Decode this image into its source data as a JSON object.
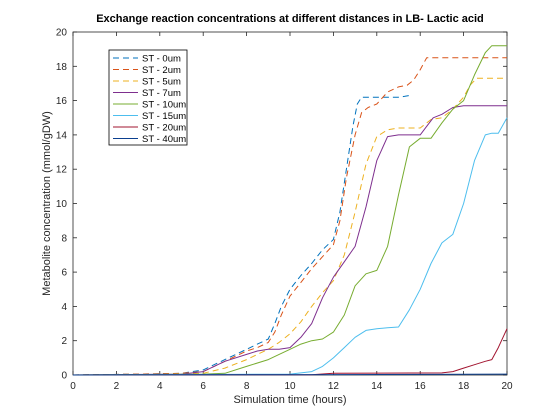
{
  "chart_data": {
    "type": "line",
    "title": "Exchange reaction concentrations at different distances in LB- Lactic acid",
    "xlabel": "Simulation time (hours)",
    "ylabel": "Metabolite concentration (mmol/gDW)",
    "xlim": [
      0,
      20
    ],
    "ylim": [
      0,
      20
    ],
    "x_ticks": [
      0,
      2,
      4,
      6,
      8,
      10,
      12,
      14,
      16,
      18,
      20
    ],
    "y_ticks": [
      0,
      2,
      4,
      6,
      8,
      10,
      12,
      14,
      16,
      18,
      20
    ],
    "grid": false,
    "legend_position": "top-left",
    "series": [
      {
        "name": "ST - 0um",
        "color": "#0072BD",
        "dash": "dashed",
        "x": [
          0,
          3,
          5,
          6,
          6.5,
          7,
          7.5,
          8,
          8.5,
          9,
          9.3,
          9.6,
          10,
          10.5,
          11,
          11.5,
          12,
          12.3,
          12.6,
          12.9,
          13.1,
          13.3,
          15,
          15.3,
          15.5
        ],
        "y": [
          0,
          0.05,
          0.1,
          0.3,
          0.6,
          0.9,
          1.2,
          1.5,
          1.8,
          2.1,
          3.0,
          4.0,
          5.0,
          5.8,
          6.5,
          7.3,
          7.9,
          9.5,
          12.0,
          14.5,
          15.8,
          16.2,
          16.2,
          16.25,
          16.3
        ]
      },
      {
        "name": "ST - 2um",
        "color": "#D95319",
        "dash": "dashed",
        "x": [
          0,
          3,
          5,
          6,
          6.5,
          7,
          7.5,
          8,
          8.5,
          9,
          9.3,
          9.6,
          10,
          10.5,
          11,
          11.5,
          12,
          12.3,
          12.6,
          13,
          13.3,
          13.6,
          14,
          14.5,
          15,
          15.4,
          15.7,
          16,
          16.3,
          20
        ],
        "y": [
          0,
          0.05,
          0.1,
          0.2,
          0.5,
          0.8,
          1.1,
          1.4,
          1.6,
          1.9,
          2.5,
          3.5,
          4.6,
          5.4,
          6.2,
          6.9,
          7.6,
          9.0,
          11.5,
          14.0,
          15.3,
          15.6,
          15.8,
          16.5,
          16.8,
          16.9,
          17.2,
          17.8,
          18.5,
          18.5
        ]
      },
      {
        "name": "ST - 5um",
        "color": "#EDB120",
        "dash": "dashed",
        "x": [
          0,
          4,
          6,
          7,
          8,
          8.5,
          9,
          9.5,
          10,
          10.5,
          11,
          11.5,
          12,
          12.5,
          13,
          13.5,
          14,
          14.5,
          15,
          16,
          16.5,
          17,
          17.5,
          18,
          18.3,
          18.6,
          20
        ],
        "y": [
          0,
          0.05,
          0.1,
          0.4,
          0.9,
          1.2,
          1.5,
          1.9,
          2.4,
          3.1,
          4.0,
          4.8,
          5.5,
          7.0,
          9.5,
          12.3,
          13.9,
          14.3,
          14.4,
          14.4,
          14.9,
          15.0,
          15.5,
          16.2,
          16.9,
          17.3,
          17.3
        ]
      },
      {
        "name": "ST - 7um",
        "color": "#7E2F8E",
        "dash": "solid",
        "x": [
          0,
          5,
          6,
          7,
          8,
          8.5,
          9,
          9.5,
          10,
          10.5,
          11,
          11.5,
          12,
          12.5,
          13,
          13.5,
          14,
          14.5,
          15,
          15.5,
          16,
          16.3,
          16.6,
          17,
          17.5,
          18,
          18.5,
          20
        ],
        "y": [
          0,
          0.05,
          0.2,
          0.8,
          1.2,
          1.4,
          1.5,
          1.5,
          1.6,
          2.2,
          3.0,
          4.5,
          5.7,
          6.6,
          7.5,
          9.8,
          12.5,
          13.9,
          14.0,
          14.0,
          14.0,
          14.5,
          15.0,
          15.2,
          15.6,
          15.7,
          15.7,
          15.7
        ]
      },
      {
        "name": "ST - 10um",
        "color": "#77AC30",
        "dash": "solid",
        "x": [
          0,
          6,
          7,
          8,
          9,
          9.5,
          10,
          10.5,
          11,
          11.5,
          12,
          12.5,
          13,
          13.5,
          14,
          14.5,
          15,
          15.5,
          16,
          16.5,
          17,
          17.5,
          18,
          18.5,
          19,
          19.3,
          20
        ],
        "y": [
          0,
          0.05,
          0.1,
          0.5,
          0.9,
          1.2,
          1.5,
          1.8,
          2.0,
          2.1,
          2.5,
          3.5,
          5.2,
          5.9,
          6.1,
          7.5,
          10.5,
          13.3,
          13.8,
          13.8,
          14.7,
          15.5,
          16.0,
          17.5,
          18.8,
          19.2,
          19.2
        ]
      },
      {
        "name": "ST - 15um",
        "color": "#4DBEEE",
        "dash": "solid",
        "x": [
          0,
          10,
          11,
          11.5,
          12,
          12.5,
          13,
          13.5,
          14,
          14.5,
          15,
          15.5,
          16,
          16.5,
          17,
          17.5,
          18,
          18.5,
          19,
          19.3,
          19.6,
          20
        ],
        "y": [
          0,
          0.05,
          0.2,
          0.5,
          1.0,
          1.6,
          2.2,
          2.6,
          2.7,
          2.75,
          2.8,
          3.8,
          5.0,
          6.5,
          7.7,
          8.2,
          10.0,
          12.5,
          14.0,
          14.1,
          14.1,
          15.0
        ]
      },
      {
        "name": "ST - 20um",
        "color": "#A2142F",
        "dash": "solid",
        "x": [
          0,
          11,
          12,
          17,
          17.5,
          18,
          18.5,
          19,
          19.3,
          19.6,
          20
        ],
        "y": [
          0,
          0.02,
          0.1,
          0.12,
          0.2,
          0.4,
          0.6,
          0.8,
          0.9,
          1.6,
          2.7
        ]
      },
      {
        "name": "ST - 40um",
        "color": "#0B3F8F",
        "dash": "solid",
        "x": [
          0,
          10,
          20
        ],
        "y": [
          0,
          0.02,
          0.05
        ]
      }
    ]
  }
}
